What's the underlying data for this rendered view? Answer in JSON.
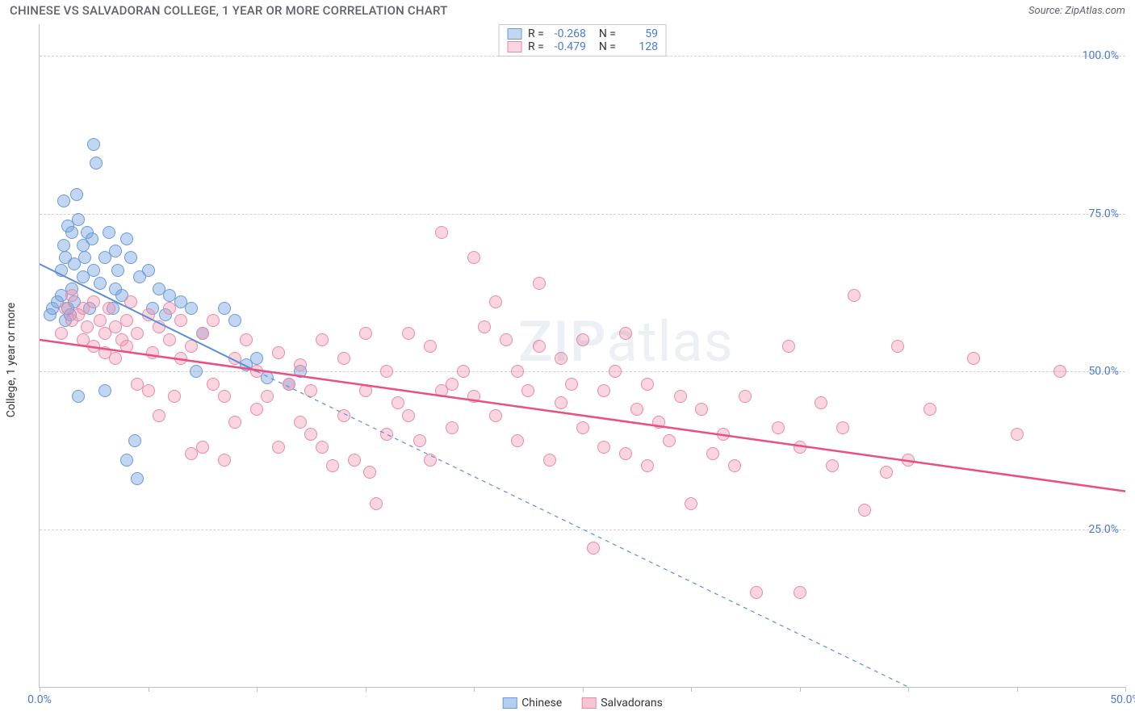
{
  "title": "CHINESE VS SALVADORAN COLLEGE, 1 YEAR OR MORE CORRELATION CHART",
  "source": "Source: ZipAtlas.com",
  "ylabel": "College, 1 year or more",
  "watermark": "ZIPatlas",
  "chart": {
    "type": "scatter",
    "xlim": [
      0,
      50
    ],
    "ylim": [
      0,
      105
    ],
    "xtick_positions": [
      0,
      5,
      10,
      15,
      20,
      25,
      30,
      35,
      40,
      45,
      50
    ],
    "xtick_labels": {
      "0": "0.0%",
      "50": "50.0%"
    },
    "ytick_positions": [
      25,
      50,
      75,
      100
    ],
    "ytick_labels": [
      "25.0%",
      "50.0%",
      "75.0%",
      "100.0%"
    ],
    "grid_color": "#d0d0d0",
    "axis_color": "#c0c0c0",
    "tick_label_color": "#4a7bd0",
    "background_color": "#ffffff",
    "point_radius": 8,
    "point_stroke_width": 1,
    "series": [
      {
        "name": "Chinese",
        "fill": "rgba(120,165,225,0.45)",
        "stroke": "#6a9ad8",
        "R": "-0.268",
        "N": "59",
        "trend": {
          "x1": 0,
          "y1": 67,
          "x2": 10,
          "y2": 50,
          "solid_end_x": 10,
          "dashed_end_x": 40,
          "dashed_end_y": 0,
          "color": "#5b8fd6",
          "width": 2
        },
        "points": [
          [
            0.5,
            59
          ],
          [
            0.6,
            60
          ],
          [
            0.8,
            61
          ],
          [
            1.0,
            62
          ],
          [
            1.0,
            66
          ],
          [
            1.1,
            70
          ],
          [
            1.1,
            77
          ],
          [
            1.2,
            58
          ],
          [
            1.2,
            68
          ],
          [
            1.3,
            60
          ],
          [
            1.3,
            73
          ],
          [
            1.4,
            59
          ],
          [
            1.5,
            63
          ],
          [
            1.5,
            72
          ],
          [
            1.6,
            61
          ],
          [
            1.6,
            67
          ],
          [
            1.7,
            78
          ],
          [
            1.8,
            74
          ],
          [
            1.8,
            46
          ],
          [
            2.0,
            65
          ],
          [
            2.0,
            70
          ],
          [
            2.1,
            68
          ],
          [
            2.2,
            72
          ],
          [
            2.3,
            60
          ],
          [
            2.4,
            71
          ],
          [
            2.5,
            66
          ],
          [
            2.5,
            86
          ],
          [
            2.6,
            83
          ],
          [
            2.8,
            64
          ],
          [
            3.0,
            68
          ],
          [
            3.0,
            47
          ],
          [
            3.2,
            72
          ],
          [
            3.4,
            60
          ],
          [
            3.5,
            63
          ],
          [
            3.5,
            69
          ],
          [
            3.6,
            66
          ],
          [
            3.8,
            62
          ],
          [
            4.0,
            71
          ],
          [
            4.0,
            36
          ],
          [
            4.2,
            68
          ],
          [
            4.4,
            39
          ],
          [
            4.5,
            33
          ],
          [
            4.6,
            65
          ],
          [
            5.0,
            66
          ],
          [
            5.2,
            60
          ],
          [
            5.5,
            63
          ],
          [
            5.8,
            59
          ],
          [
            6.0,
            62
          ],
          [
            6.5,
            61
          ],
          [
            7.0,
            60
          ],
          [
            7.2,
            50
          ],
          [
            7.5,
            56
          ],
          [
            8.5,
            60
          ],
          [
            9.0,
            58
          ],
          [
            9.5,
            51
          ],
          [
            10.0,
            52
          ],
          [
            10.5,
            49
          ],
          [
            11.5,
            48
          ],
          [
            12.0,
            50
          ]
        ]
      },
      {
        "name": "Salvadorans",
        "fill": "rgba(240,150,175,0.40)",
        "stroke": "#e78aa8",
        "R": "-0.479",
        "N": "128",
        "trend": {
          "x1": 0,
          "y1": 55,
          "x2": 50,
          "y2": 31,
          "solid_end_x": 50,
          "color": "#e94f82",
          "width": 2.5
        },
        "points": [
          [
            1.0,
            56
          ],
          [
            1.2,
            60
          ],
          [
            1.5,
            58
          ],
          [
            1.5,
            62
          ],
          [
            1.8,
            59
          ],
          [
            2.0,
            55
          ],
          [
            2.0,
            60
          ],
          [
            2.2,
            57
          ],
          [
            2.5,
            61
          ],
          [
            2.5,
            54
          ],
          [
            2.8,
            58
          ],
          [
            3.0,
            56
          ],
          [
            3.0,
            53
          ],
          [
            3.2,
            60
          ],
          [
            3.5,
            57
          ],
          [
            3.5,
            52
          ],
          [
            3.8,
            55
          ],
          [
            4.0,
            58
          ],
          [
            4.0,
            54
          ],
          [
            4.2,
            61
          ],
          [
            4.5,
            56
          ],
          [
            4.5,
            48
          ],
          [
            5.0,
            59
          ],
          [
            5.0,
            47
          ],
          [
            5.2,
            53
          ],
          [
            5.5,
            57
          ],
          [
            5.5,
            43
          ],
          [
            6.0,
            55
          ],
          [
            6.0,
            60
          ],
          [
            6.2,
            46
          ],
          [
            6.5,
            52
          ],
          [
            6.5,
            58
          ],
          [
            7.0,
            54
          ],
          [
            7.0,
            37
          ],
          [
            7.5,
            38
          ],
          [
            7.5,
            56
          ],
          [
            8.0,
            48
          ],
          [
            8.0,
            58
          ],
          [
            8.5,
            46
          ],
          [
            8.5,
            36
          ],
          [
            9.0,
            52
          ],
          [
            9.0,
            42
          ],
          [
            9.5,
            55
          ],
          [
            10.0,
            50
          ],
          [
            10.0,
            44
          ],
          [
            10.5,
            46
          ],
          [
            11.0,
            53
          ],
          [
            11.0,
            38
          ],
          [
            11.5,
            48
          ],
          [
            12.0,
            51
          ],
          [
            12.0,
            42
          ],
          [
            12.5,
            40
          ],
          [
            12.5,
            47
          ],
          [
            13.0,
            55
          ],
          [
            13.0,
            38
          ],
          [
            13.5,
            35
          ],
          [
            14.0,
            52
          ],
          [
            14.0,
            43
          ],
          [
            14.5,
            36
          ],
          [
            15.0,
            47
          ],
          [
            15.0,
            56
          ],
          [
            15.2,
            34
          ],
          [
            15.5,
            29
          ],
          [
            16.0,
            50
          ],
          [
            16.0,
            40
          ],
          [
            16.5,
            45
          ],
          [
            17.0,
            43
          ],
          [
            17.0,
            56
          ],
          [
            17.5,
            39
          ],
          [
            18.0,
            54
          ],
          [
            18.0,
            36
          ],
          [
            18.5,
            47
          ],
          [
            18.5,
            72
          ],
          [
            19.0,
            48
          ],
          [
            19.0,
            41
          ],
          [
            19.5,
            50
          ],
          [
            20.0,
            46
          ],
          [
            20.0,
            68
          ],
          [
            20.5,
            57
          ],
          [
            21.0,
            61
          ],
          [
            21.0,
            43
          ],
          [
            21.5,
            55
          ],
          [
            22.0,
            50
          ],
          [
            22.0,
            39
          ],
          [
            22.5,
            47
          ],
          [
            23.0,
            54
          ],
          [
            23.0,
            64
          ],
          [
            23.5,
            36
          ],
          [
            24.0,
            45
          ],
          [
            24.0,
            52
          ],
          [
            24.5,
            48
          ],
          [
            25.0,
            55
          ],
          [
            25.0,
            41
          ],
          [
            25.5,
            22
          ],
          [
            26.0,
            47
          ],
          [
            26.0,
            38
          ],
          [
            26.5,
            50
          ],
          [
            27.0,
            56
          ],
          [
            27.0,
            37
          ],
          [
            27.5,
            44
          ],
          [
            28.0,
            48
          ],
          [
            28.0,
            35
          ],
          [
            28.5,
            42
          ],
          [
            29.0,
            39
          ],
          [
            29.5,
            46
          ],
          [
            30.0,
            29
          ],
          [
            30.5,
            44
          ],
          [
            31.0,
            37
          ],
          [
            31.5,
            40
          ],
          [
            32.0,
            35
          ],
          [
            32.5,
            46
          ],
          [
            33.0,
            15
          ],
          [
            34.0,
            41
          ],
          [
            34.5,
            54
          ],
          [
            35.0,
            38
          ],
          [
            35.0,
            15
          ],
          [
            36.0,
            45
          ],
          [
            36.5,
            35
          ],
          [
            37.0,
            41
          ],
          [
            37.5,
            62
          ],
          [
            38.0,
            28
          ],
          [
            39.0,
            34
          ],
          [
            39.5,
            54
          ],
          [
            40.0,
            36
          ],
          [
            41.0,
            44
          ],
          [
            43.0,
            52
          ],
          [
            45.0,
            40
          ],
          [
            47.0,
            50
          ]
        ]
      }
    ]
  },
  "legend_bottom": [
    {
      "label": "Chinese",
      "fill": "rgba(120,165,225,0.55)",
      "stroke": "#6a9ad8"
    },
    {
      "label": "Salvadorans",
      "fill": "rgba(240,150,175,0.55)",
      "stroke": "#e78aa8"
    }
  ]
}
